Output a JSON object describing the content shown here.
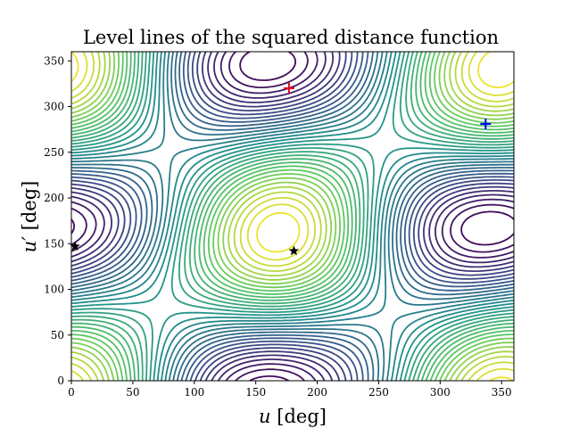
{
  "chart_data": {
    "type": "contour",
    "title": "Level lines of the squared distance function",
    "xlabel": "u [deg]",
    "ylabel": "u′ [deg]",
    "xlim": [
      0,
      360
    ],
    "ylim": [
      0,
      360
    ],
    "xticks": [
      0,
      50,
      100,
      150,
      200,
      250,
      300,
      350
    ],
    "yticks": [
      0,
      50,
      100,
      150,
      200,
      250,
      300,
      350
    ],
    "grid": false,
    "colormap": "viridis",
    "markers": [
      {
        "symbol": "plus",
        "color": "#e6001a",
        "x": 177,
        "y": 320
      },
      {
        "symbol": "plus",
        "color": "#0000ff",
        "x": 337,
        "y": 281
      },
      {
        "symbol": "star",
        "color": "#000000",
        "x": 181,
        "y": 142
      },
      {
        "symbol": "star",
        "color": "#000000",
        "x": 3,
        "y": 147
      }
    ]
  }
}
